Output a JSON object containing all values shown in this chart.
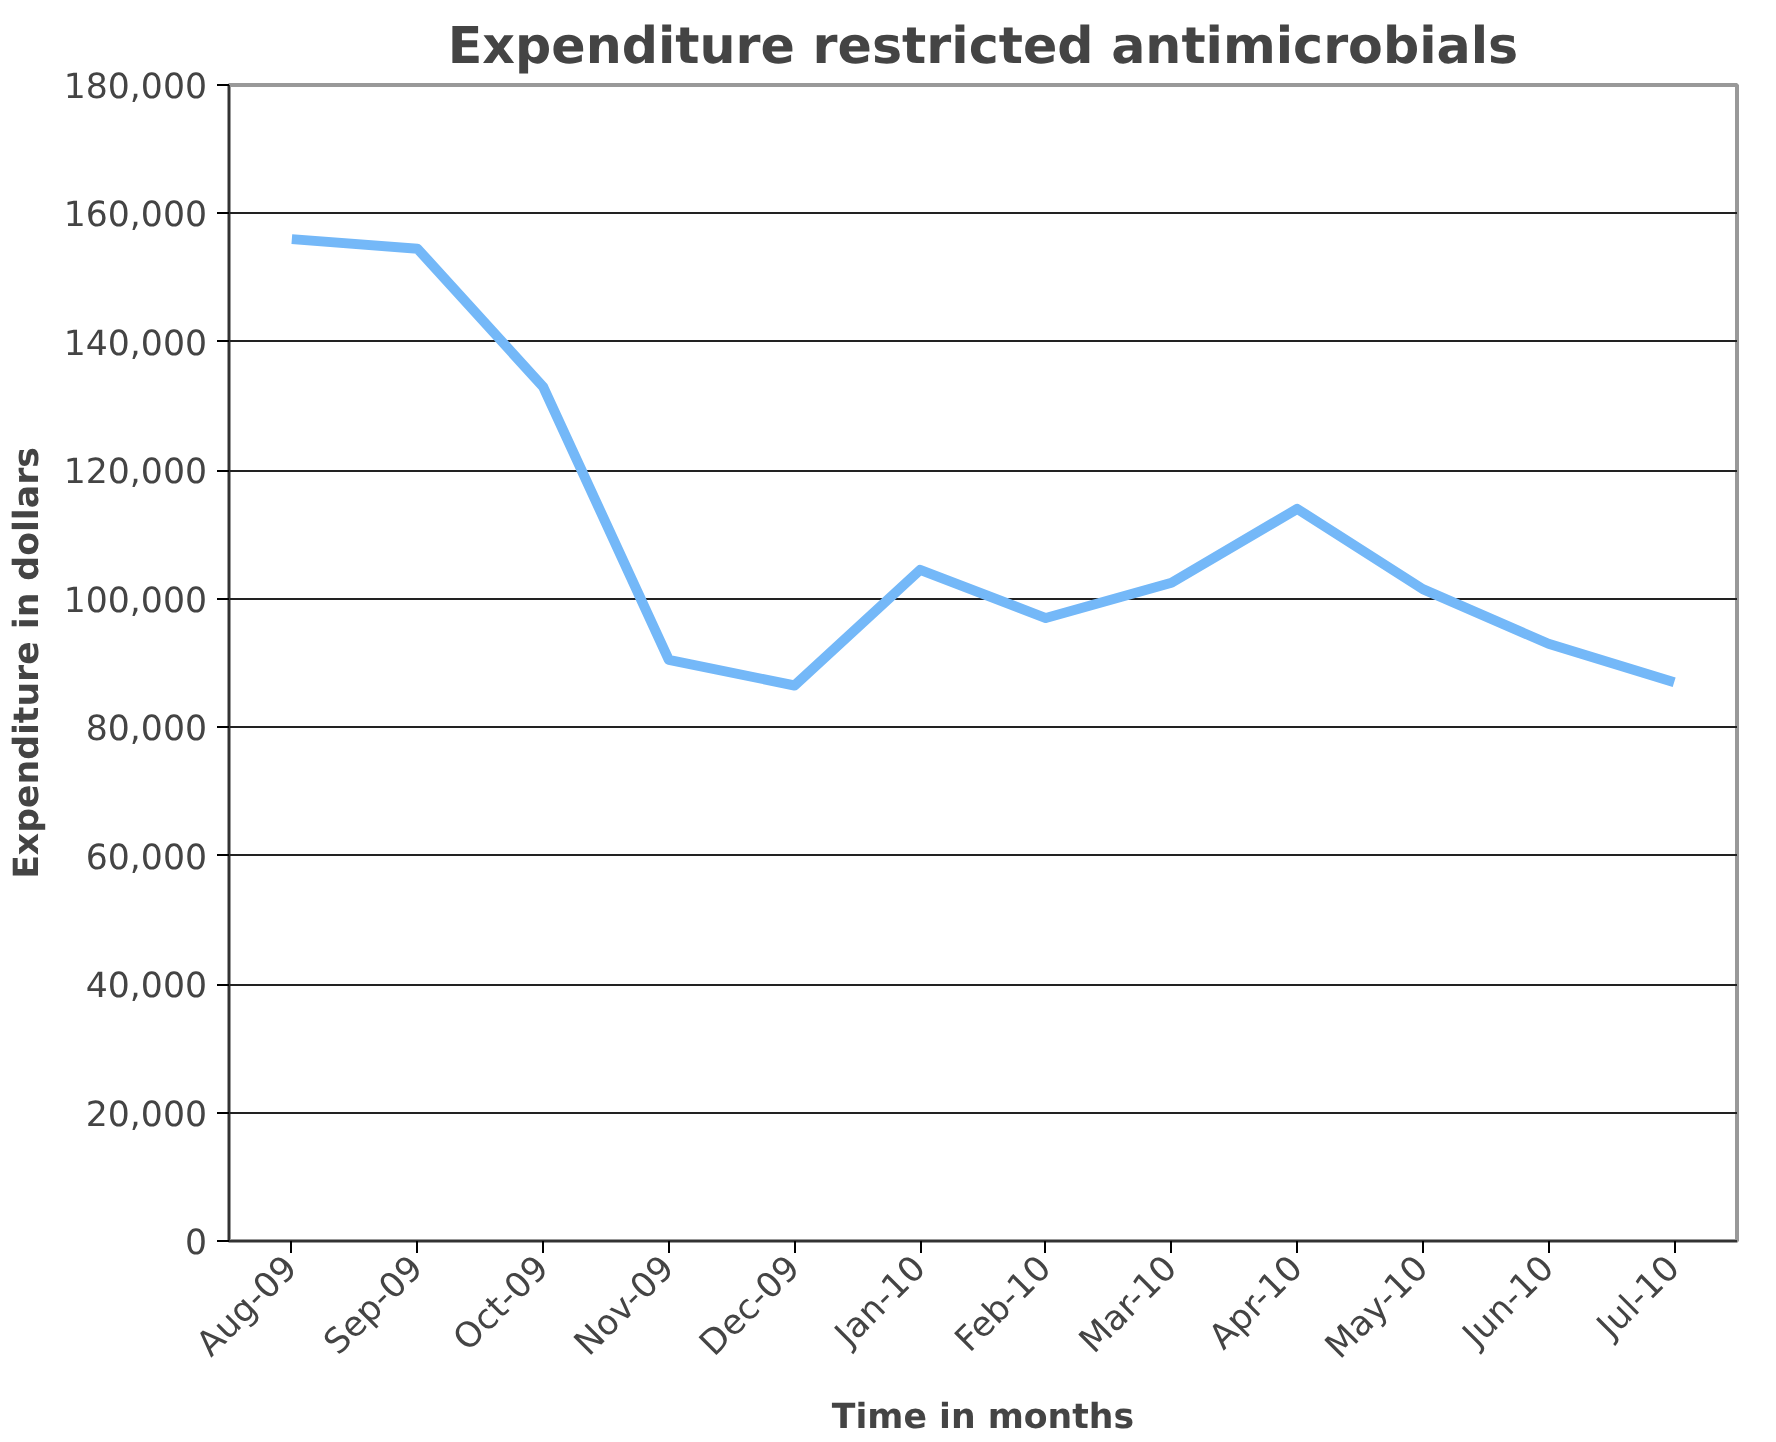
{
  "chart_data": {
    "type": "line",
    "title": "Expenditure restricted antimicrobials",
    "xlabel": "Time in months",
    "ylabel": "Expenditure in dollars",
    "categories": [
      "Aug-09",
      "Sep-09",
      "Oct-09",
      "Nov-09",
      "Dec-09",
      "Jan-10",
      "Feb-10",
      "Mar-10",
      "Apr-10",
      "May-10",
      "Jun-10",
      "Jul-10"
    ],
    "series": [
      {
        "color": "#74b8f8",
        "values": [
          156000,
          154500,
          133000,
          90500,
          86500,
          104500,
          97000,
          102500,
          114000,
          101500,
          93000,
          87000
        ]
      }
    ],
    "ylim": [
      0,
      180000
    ],
    "yticks": [
      {
        "value": 0,
        "label": "0"
      },
      {
        "value": 20000,
        "label": "20,000"
      },
      {
        "value": 40000,
        "label": "40,000"
      },
      {
        "value": 60000,
        "label": "60,000"
      },
      {
        "value": 80000,
        "label": "80,000"
      },
      {
        "value": 100000,
        "label": "100,000"
      },
      {
        "value": 120000,
        "label": "120,000"
      },
      {
        "value": 140000,
        "label": "140,000"
      },
      {
        "value": 160000,
        "label": "160,000"
      },
      {
        "value": 180000,
        "label": "180,000"
      }
    ],
    "grid": "y",
    "marker": "none",
    "line_style": "solid"
  }
}
